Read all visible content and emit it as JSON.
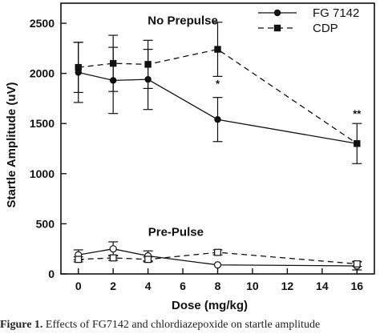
{
  "chart_data": {
    "type": "line",
    "xlabel": "Dose (mg/kg)",
    "ylabel": "Startle Amplitude (uV)",
    "xlim": [
      -1,
      17
    ],
    "ylim": [
      0,
      2700
    ],
    "x_ticks": [
      0,
      2,
      4,
      6,
      8,
      10,
      12,
      14,
      16
    ],
    "y_ticks": [
      0,
      500,
      1000,
      1500,
      2000,
      2500
    ],
    "grid": false,
    "legend_position": "top-right",
    "legend": [
      {
        "label": "FG 7142",
        "marker": "filled-circle",
        "line": "solid"
      },
      {
        "label": "CDP",
        "marker": "filled-square",
        "line": "dashed"
      }
    ],
    "annotations": [
      {
        "text": "No Prepulse",
        "x": 6,
        "y": 2490
      },
      {
        "text": "Pre-Pulse",
        "x": 5.6,
        "y": 380
      }
    ],
    "significance_marks": [
      {
        "text": "*",
        "x": 8,
        "y": 1860
      },
      {
        "text": "**",
        "x": 16,
        "y": 1560
      }
    ],
    "series": [
      {
        "name": "FG 7142",
        "condition": "No Prepulse",
        "line": "solid",
        "marker": "filled-circle",
        "x": [
          0,
          2,
          4,
          8,
          16
        ],
        "y": [
          2010,
          1930,
          1940,
          1540,
          1300
        ],
        "err": [
          300,
          330,
          300,
          220,
          0
        ]
      },
      {
        "name": "CDP",
        "condition": "No Prepulse",
        "line": "dashed",
        "marker": "filled-square",
        "x": [
          0,
          2,
          4,
          8,
          16
        ],
        "y": [
          2060,
          2100,
          2090,
          2240,
          1300
        ],
        "err": [
          250,
          280,
          240,
          270,
          200
        ]
      },
      {
        "name": "FG 7142",
        "condition": "Pre-Pulse",
        "line": "solid",
        "marker": "open-circle",
        "x": [
          0,
          2,
          4,
          8,
          16
        ],
        "y": [
          190,
          250,
          180,
          90,
          80
        ],
        "err": [
          50,
          70,
          50,
          0,
          40
        ]
      },
      {
        "name": "CDP",
        "condition": "Pre-Pulse",
        "line": "dashed",
        "marker": "open-square",
        "x": [
          0,
          2,
          4,
          8,
          16
        ],
        "y": [
          145,
          160,
          145,
          215,
          100
        ],
        "err": [
          25,
          25,
          25,
          25,
          25
        ]
      }
    ]
  },
  "caption": {
    "bold": "Figure 1.",
    "text": "Effects of FG7142 and chlordiazepoxide on startle amplitude"
  }
}
